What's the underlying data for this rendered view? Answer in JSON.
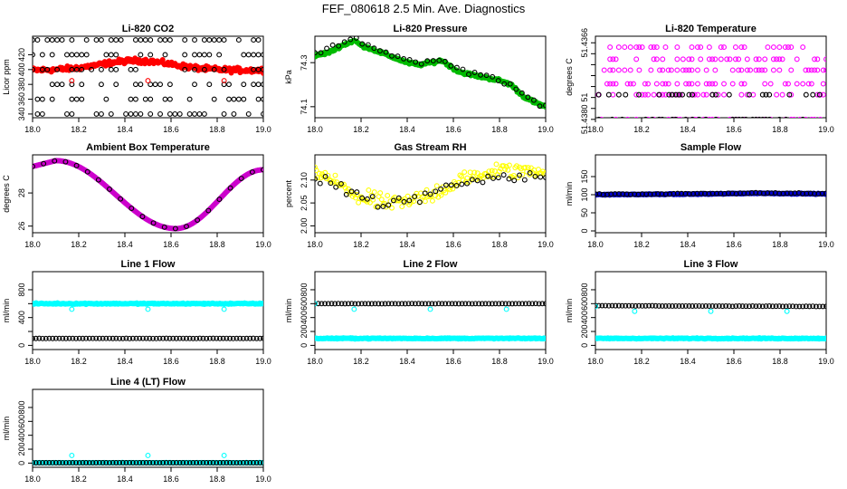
{
  "suptitle": "FEF_080618  2.5 Min. Ave. Diagnostics",
  "chart_data": [
    {
      "type": "scatter",
      "title": "Li-820 CO2",
      "ylabel": "Licor ppm",
      "xlim": [
        18.0,
        19.0
      ],
      "ylim": [
        335,
        445
      ],
      "xticks": [
        "18.0",
        "18.2",
        "18.4",
        "18.6",
        "18.8",
        "19.0"
      ],
      "yticks": [
        {
          "v": 340,
          "label": "340"
        },
        {
          "v": 360,
          "label": "360"
        },
        {
          "v": 380,
          "label": "380"
        },
        {
          "v": 400,
          "label": "400"
        },
        {
          "v": 420,
          "label": "420"
        }
      ],
      "series": [
        {
          "color": "#ff0000",
          "marker": "dense",
          "gen": {
            "kind": "bump",
            "base": 399,
            "amp": 13,
            "center": 18.45,
            "width": 0.22,
            "noise": 4
          }
        },
        {
          "color": "#000000",
          "marker": "open",
          "gen": {
            "kind": "rows",
            "rows": [
              440,
              420,
              400,
              380,
              360,
              340
            ],
            "n": 48,
            "density": 0.5
          }
        },
        {
          "color": "#ff0000",
          "marker": "open",
          "gen": {
            "kind": "points",
            "points": [
              [
                18.17,
                385
              ],
              [
                18.5,
                385
              ],
              [
                18.83,
                385
              ]
            ]
          }
        }
      ]
    },
    {
      "type": "scatter",
      "title": "Li-820 Pressure",
      "ylabel": "kPa",
      "xlim": [
        18.0,
        19.0
      ],
      "ylim": [
        74.05,
        74.42
      ],
      "xticks": [
        "18.0",
        "18.2",
        "18.4",
        "18.6",
        "18.8",
        "19.0"
      ],
      "yticks": [
        {
          "v": 74.1,
          "label": "74.1"
        },
        {
          "v": 74.3,
          "label": "74.3"
        }
      ],
      "series": [
        {
          "color": "#00bb00",
          "marker": "dense",
          "gen": {
            "kind": "path",
            "pts": [
              [
                18.0,
                74.33
              ],
              [
                18.07,
                74.35
              ],
              [
                18.1,
                74.37
              ],
              [
                18.17,
                74.4
              ],
              [
                18.2,
                74.38
              ],
              [
                18.3,
                74.34
              ],
              [
                18.35,
                74.32
              ],
              [
                18.4,
                74.3
              ],
              [
                18.45,
                74.29
              ],
              [
                18.5,
                74.3
              ],
              [
                18.55,
                74.31
              ],
              [
                18.62,
                74.26
              ],
              [
                18.7,
                74.24
              ],
              [
                18.75,
                74.23
              ],
              [
                18.8,
                74.22
              ],
              [
                18.85,
                74.2
              ],
              [
                18.9,
                74.15
              ],
              [
                18.95,
                74.12
              ],
              [
                19.0,
                74.1
              ]
            ],
            "noise": 0.008
          }
        },
        {
          "color": "#000000",
          "marker": "open",
          "gen": {
            "kind": "path",
            "pts": [
              [
                18.0,
                74.34
              ],
              [
                18.1,
                74.38
              ],
              [
                18.17,
                74.41
              ],
              [
                18.25,
                74.37
              ],
              [
                18.35,
                74.33
              ],
              [
                18.45,
                74.3
              ],
              [
                18.55,
                74.31
              ],
              [
                18.65,
                74.26
              ],
              [
                18.75,
                74.24
              ],
              [
                18.85,
                74.2
              ],
              [
                18.95,
                74.12
              ],
              [
                19.0,
                74.1
              ]
            ],
            "noise": 0.01,
            "n": 40
          }
        }
      ]
    },
    {
      "type": "scatter",
      "title": "Li-820 Temperature",
      "ylabel": "degrees C",
      "xlim": [
        18.0,
        19.0
      ],
      "ylim": [
        51.43797,
        51.43648
      ],
      "xticks": [
        "18.0",
        "18.2",
        "18.4",
        "18.6",
        "18.8",
        "19.0"
      ],
      "yticks": [
        {
          "v": 51.438,
          "label": "51.4380"
        },
        {
          "v": 51.4378,
          "label": ""
        },
        {
          "v": 51.4376,
          "label": "51"
        },
        {
          "v": 51.4374,
          "label": ""
        },
        {
          "v": 51.4372,
          "label": ""
        },
        {
          "v": 51.437,
          "label": ""
        },
        {
          "v": 51.4368,
          "label": ""
        },
        {
          "v": 51.4366,
          "label": "51.4366"
        }
      ],
      "series": [
        {
          "color": "#ff00ff",
          "marker": "open",
          "gen": {
            "kind": "rows",
            "rows": [
              51.438,
              51.43755,
              51.43735,
              51.4371,
              51.4369,
              51.43668
            ],
            "n": 80,
            "density": 0.45
          }
        },
        {
          "color": "#000000",
          "marker": "open",
          "gen": {
            "kind": "rows",
            "rows": [
              51.438,
              51.43755
            ],
            "n": 70,
            "density": 0.4
          }
        }
      ]
    },
    {
      "type": "scatter",
      "title": "Ambient Box Temperature",
      "ylabel": "degrees C",
      "xlim": [
        18.0,
        19.0
      ],
      "ylim": [
        25.6,
        30.3
      ],
      "xticks": [
        "18.0",
        "18.2",
        "18.4",
        "18.6",
        "18.8",
        "19.0"
      ],
      "yticks": [
        {
          "v": 26,
          "label": "26"
        },
        {
          "v": 28,
          "label": "28"
        }
      ],
      "series": [
        {
          "color": "#cc00cc",
          "marker": "dense",
          "gen": {
            "kind": "cos",
            "mid": 27.9,
            "amp": 2.05,
            "peak": 18.1,
            "trough": 18.62,
            "end": 19.0,
            "endval": 29.4
          }
        },
        {
          "color": "#000000",
          "marker": "open",
          "gen": {
            "kind": "cos",
            "mid": 27.9,
            "amp": 2.05,
            "peak": 18.1,
            "trough": 18.62,
            "end": 19.0,
            "endval": 29.4,
            "n": 22
          }
        }
      ]
    },
    {
      "type": "scatter",
      "title": "Gas Stream RH",
      "ylabel": "percent",
      "xlim": [
        18.0,
        19.0
      ],
      "ylim": [
        1.985,
        2.155
      ],
      "xticks": [
        "18.0",
        "18.2",
        "18.4",
        "18.6",
        "18.8",
        "19.0"
      ],
      "yticks": [
        {
          "v": 2.0,
          "label": "2.00"
        },
        {
          "v": 2.05,
          "label": "2.05"
        },
        {
          "v": 2.1,
          "label": "2.10"
        }
      ],
      "series": [
        {
          "color": "#ffff00",
          "marker": "open",
          "gen": {
            "kind": "path",
            "pts": [
              [
                18.0,
                2.12
              ],
              [
                18.1,
                2.09
              ],
              [
                18.2,
                2.06
              ],
              [
                18.3,
                2.05
              ],
              [
                18.4,
                2.05
              ],
              [
                18.5,
                2.07
              ],
              [
                18.6,
                2.09
              ],
              [
                18.7,
                2.11
              ],
              [
                18.8,
                2.12
              ],
              [
                18.9,
                2.12
              ],
              [
                19.0,
                2.12
              ]
            ],
            "noise": 0.022,
            "n": 160
          }
        },
        {
          "color": "#000000",
          "marker": "open",
          "gen": {
            "kind": "path",
            "pts": [
              [
                18.0,
                2.11
              ],
              [
                18.1,
                2.09
              ],
              [
                18.2,
                2.06
              ],
              [
                18.3,
                2.05
              ],
              [
                18.4,
                2.05
              ],
              [
                18.5,
                2.07
              ],
              [
                18.6,
                2.09
              ],
              [
                18.7,
                2.1
              ],
              [
                18.8,
                2.11
              ],
              [
                18.9,
                2.11
              ],
              [
                19.0,
                2.11
              ]
            ],
            "noise": 0.015,
            "n": 45
          }
        }
      ]
    },
    {
      "type": "scatter",
      "title": "Sample Flow",
      "ylabel": "ml/min",
      "xlim": [
        18.0,
        19.0
      ],
      "ylim": [
        -5,
        210
      ],
      "xticks": [
        "18.0",
        "18.2",
        "18.4",
        "18.6",
        "18.8",
        "19.0"
      ],
      "yticks": [
        {
          "v": 0,
          "label": "0"
        },
        {
          "v": 50,
          "label": "50"
        },
        {
          "v": 100,
          "label": "100"
        },
        {
          "v": 150,
          "label": "150"
        }
      ],
      "series": [
        {
          "color": "#0000cc",
          "marker": "dense",
          "gen": {
            "kind": "path",
            "pts": [
              [
                18.0,
                100
              ],
              [
                18.5,
                102
              ],
              [
                18.7,
                104
              ],
              [
                19.0,
                102
              ]
            ],
            "noise": 1.5
          }
        },
        {
          "color": "#000000",
          "marker": "open",
          "gen": {
            "kind": "path",
            "pts": [
              [
                18.0,
                101
              ],
              [
                18.5,
                103
              ],
              [
                18.7,
                105
              ],
              [
                19.0,
                103
              ]
            ],
            "noise": 1.5,
            "n": 60
          }
        }
      ]
    },
    {
      "type": "scatter",
      "title": "Line 1 Flow",
      "ylabel": "ml/min",
      "xlim": [
        18.0,
        19.0
      ],
      "ylim": [
        -60,
        1060
      ],
      "xticks": [
        "18.0",
        "18.2",
        "18.4",
        "18.6",
        "18.8",
        "19.0"
      ],
      "yticks": [
        {
          "v": 0,
          "label": "0"
        },
        {
          "v": 200,
          "label": ""
        },
        {
          "v": 400,
          "label": "400"
        },
        {
          "v": 600,
          "label": ""
        },
        {
          "v": 800,
          "label": "800"
        }
      ],
      "series": [
        {
          "color": "#00ffff",
          "marker": "dense",
          "gen": {
            "kind": "path",
            "pts": [
              [
                18.0,
                600
              ],
              [
                19.0,
                600
              ]
            ],
            "noise": 10
          }
        },
        {
          "color": "#000000",
          "marker": "open",
          "gen": {
            "kind": "path",
            "pts": [
              [
                18.0,
                100
              ],
              [
                19.0,
                100
              ]
            ],
            "noise": 2,
            "n": 70
          }
        },
        {
          "color": "#00ffff",
          "marker": "open",
          "gen": {
            "kind": "points",
            "points": [
              [
                18.17,
                520
              ],
              [
                18.5,
                520
              ],
              [
                18.83,
                520
              ]
            ]
          }
        }
      ]
    },
    {
      "type": "scatter",
      "title": "Line 2 Flow",
      "ylabel": "ml/min",
      "xlim": [
        18.0,
        19.0
      ],
      "ylim": [
        -60,
        1060
      ],
      "xticks": [
        "18.0",
        "18.2",
        "18.4",
        "18.6",
        "18.8",
        "19.0"
      ],
      "yticks": [
        {
          "v": 0,
          "label": "0"
        },
        {
          "v": 200,
          "label": "200"
        },
        {
          "v": 400,
          "label": "400"
        },
        {
          "v": 600,
          "label": "600"
        },
        {
          "v": 800,
          "label": "800"
        }
      ],
      "series": [
        {
          "color": "#00ffff",
          "marker": "dense",
          "gen": {
            "kind": "path",
            "pts": [
              [
                18.0,
                100
              ],
              [
                19.0,
                100
              ]
            ],
            "noise": 8
          }
        },
        {
          "color": "#000000",
          "marker": "open",
          "gen": {
            "kind": "path",
            "pts": [
              [
                18.02,
                600
              ],
              [
                19.0,
                600
              ]
            ],
            "noise": 2,
            "n": 70
          }
        },
        {
          "color": "#00ffff",
          "marker": "open",
          "gen": {
            "kind": "points",
            "points": [
              [
                18.0,
                600
              ],
              [
                18.17,
                520
              ],
              [
                18.5,
                520
              ],
              [
                18.83,
                520
              ]
            ]
          }
        }
      ]
    },
    {
      "type": "scatter",
      "title": "Line 3 Flow",
      "ylabel": "ml/min",
      "xlim": [
        18.0,
        19.0
      ],
      "ylim": [
        -60,
        1060
      ],
      "xticks": [
        "18.0",
        "18.2",
        "18.4",
        "18.6",
        "18.8",
        "19.0"
      ],
      "yticks": [
        {
          "v": 0,
          "label": "0"
        },
        {
          "v": 200,
          "label": "200"
        },
        {
          "v": 400,
          "label": "400"
        },
        {
          "v": 600,
          "label": "600"
        },
        {
          "v": 800,
          "label": "800"
        }
      ],
      "series": [
        {
          "color": "#00ffff",
          "marker": "dense",
          "gen": {
            "kind": "path",
            "pts": [
              [
                18.0,
                100
              ],
              [
                19.0,
                100
              ]
            ],
            "noise": 8
          }
        },
        {
          "color": "#000000",
          "marker": "open",
          "gen": {
            "kind": "path",
            "pts": [
              [
                18.02,
                570
              ],
              [
                19.0,
                560
              ]
            ],
            "noise": 3,
            "n": 70
          }
        },
        {
          "color": "#00ffff",
          "marker": "open",
          "gen": {
            "kind": "points",
            "points": [
              [
                18.0,
                560
              ],
              [
                18.17,
                490
              ],
              [
                18.5,
                490
              ],
              [
                18.83,
                490
              ]
            ]
          }
        }
      ]
    },
    {
      "type": "scatter",
      "title": "Line 4 (LT) Flow",
      "ylabel": "ml/min",
      "xlim": [
        18.0,
        19.0
      ],
      "ylim": [
        -60,
        1060
      ],
      "xticks": [
        "18.0",
        "18.2",
        "18.4",
        "18.6",
        "18.8",
        "19.0"
      ],
      "yticks": [
        {
          "v": 0,
          "label": "0"
        },
        {
          "v": 200,
          "label": "200"
        },
        {
          "v": 400,
          "label": "400"
        },
        {
          "v": 600,
          "label": "600"
        },
        {
          "v": 800,
          "label": "800"
        }
      ],
      "series": [
        {
          "color": "#00ffff",
          "marker": "dense",
          "gen": {
            "kind": "path",
            "pts": [
              [
                18.0,
                5
              ],
              [
                19.0,
                5
              ]
            ],
            "noise": 3
          }
        },
        {
          "color": "#000000",
          "marker": "open",
          "gen": {
            "kind": "path",
            "pts": [
              [
                18.0,
                5
              ],
              [
                19.0,
                5
              ]
            ],
            "noise": 1,
            "n": 70
          }
        },
        {
          "color": "#00ffff",
          "marker": "open",
          "gen": {
            "kind": "points",
            "points": [
              [
                18.17,
                110
              ],
              [
                18.5,
                110
              ],
              [
                18.83,
                110
              ]
            ]
          }
        }
      ]
    }
  ]
}
